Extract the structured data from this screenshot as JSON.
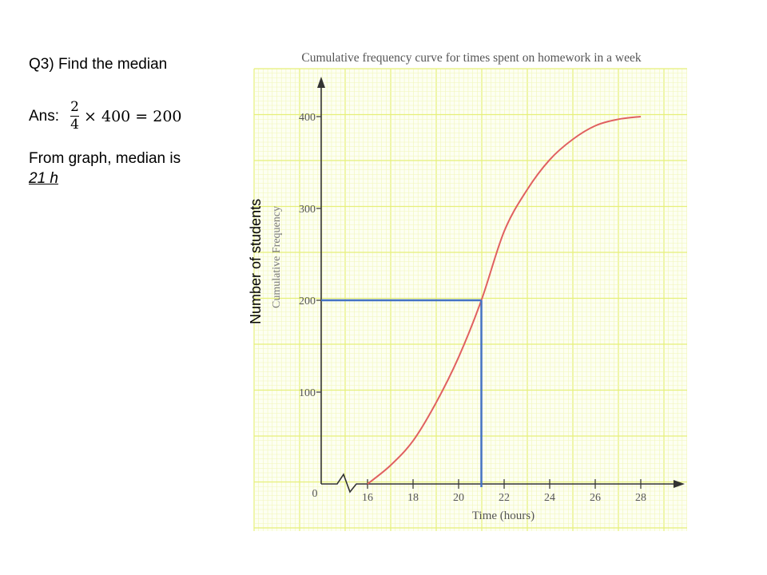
{
  "question": {
    "label": "Q3) Find the median",
    "answer_label": "Ans:",
    "fraction_numerator": "2",
    "fraction_denominator": "4",
    "expression_rest": "× 400 = 200",
    "conclusion": "From graph, median is",
    "result": "21 h"
  },
  "annotation": {
    "y_axis_overlay_label": "Number of students",
    "median_line_color": "#4472C4",
    "median_y": 200,
    "median_x": 21
  },
  "chart_data": {
    "type": "line",
    "title": "Cumulative frequency curve for times spent on homework in a week",
    "xlabel": "Time (hours)",
    "ylabel": "Cumulative Frequency",
    "x_ticks": [
      "0",
      "16",
      "18",
      "20",
      "22",
      "24",
      "26",
      "28"
    ],
    "y_ticks": [
      "0",
      "100",
      "200",
      "300",
      "400"
    ],
    "xlim": [
      16,
      28
    ],
    "ylim": [
      0,
      400
    ],
    "axis_break": true,
    "grid": true,
    "series": [
      {
        "name": "Cumulative frequency",
        "color": "#E06060",
        "x": [
          16,
          17,
          18,
          19,
          20,
          21,
          22,
          23,
          24,
          25,
          26,
          27,
          28
        ],
        "y": [
          0,
          20,
          47,
          88,
          138,
          200,
          275,
          320,
          353,
          375,
          390,
          397,
          400
        ]
      }
    ],
    "colors": {
      "grid_major": "#e6ef7a",
      "grid_minor": "#f1f6b8",
      "axis": "#333333",
      "curve": "#E06060",
      "median_lines": "#4472C4"
    }
  }
}
